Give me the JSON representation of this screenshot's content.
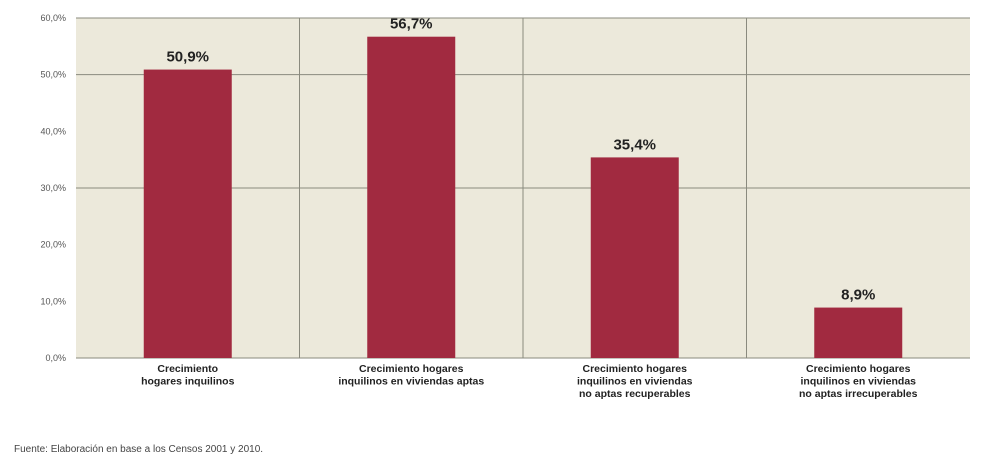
{
  "chart_data": {
    "type": "bar",
    "categories": [
      [
        "Crecimiento",
        "hogares inquilinos"
      ],
      [
        "Crecimiento hogares",
        "inquilinos en viviendas aptas"
      ],
      [
        "Crecimiento hogares",
        "inquilinos en viviendas",
        "no aptas recuperables"
      ],
      [
        "Crecimiento hogares",
        "inquilinos en viviendas",
        "no aptas irrecuperables"
      ]
    ],
    "values": [
      50.9,
      56.7,
      35.4,
      8.9
    ],
    "data_labels": [
      "50,9%",
      "56,7%",
      "35,4%",
      "8,9%"
    ],
    "ylim": [
      0,
      60
    ],
    "yticks": [
      0,
      10,
      20,
      30,
      40,
      50,
      60
    ],
    "ytick_labels": [
      "0,0%",
      "10,0%",
      "20,0%",
      "30,0%",
      "40,0%",
      "50,0%",
      "60,0%"
    ],
    "grid": true,
    "colors": {
      "bar": "#a12a40",
      "plot_bg": "#ece9db",
      "grid": "#8a8a7e"
    }
  },
  "source_note": "Fuente: Elaboración en base a los Censos 2001 y 2010."
}
